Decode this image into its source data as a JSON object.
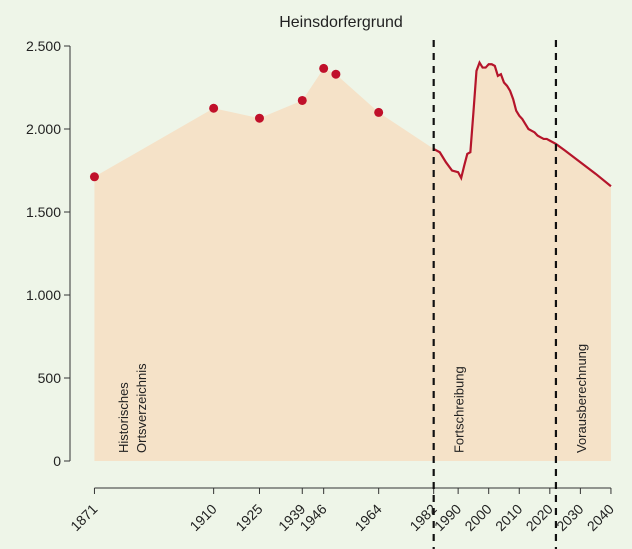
{
  "chart_data": {
    "type": "area",
    "title": "Heinsdorfergrund",
    "points": {
      "color": "#c0102a",
      "x": [
        1871,
        1910,
        1925,
        1939,
        1946,
        1950,
        1964
      ],
      "values": [
        1712,
        2125,
        2065,
        2172,
        2365,
        2330,
        2100
      ]
    },
    "line": {
      "color": "#b5152b",
      "x": [
        1982,
        1984,
        1986,
        1988,
        1990,
        1991,
        1992,
        1993,
        1994,
        1995,
        1996,
        1997,
        1998,
        1999,
        2000,
        2001,
        2002,
        2003,
        2004,
        2005,
        2006,
        2007,
        2008,
        2009,
        2010,
        2011,
        2012,
        2013,
        2014,
        2015,
        2016,
        2017,
        2018,
        2019,
        2020,
        2022,
        2025,
        2030,
        2035,
        2040
      ],
      "values": [
        1880,
        1860,
        1800,
        1750,
        1740,
        1705,
        1780,
        1850,
        1860,
        2100,
        2350,
        2400,
        2370,
        2370,
        2390,
        2390,
        2380,
        2320,
        2330,
        2280,
        2260,
        2230,
        2180,
        2110,
        2080,
        2060,
        2030,
        2000,
        1990,
        1980,
        1960,
        1950,
        1940,
        1940,
        1930,
        1910,
        1870,
        1800,
        1730,
        1655
      ]
    },
    "area_color": "#f5e2c8",
    "vlines": [
      1982,
      2022
    ],
    "annotations": [
      [
        "Historisches",
        "Ortsverzeichnis"
      ],
      [
        "Fortschreibung"
      ],
      [
        "Vorausberechnung"
      ]
    ],
    "xlim": [
      1863,
      2041
    ],
    "xticks": [
      1871,
      1910,
      1925,
      1939,
      1946,
      1964,
      1982,
      1990,
      2000,
      2010,
      2020,
      2030,
      2040
    ],
    "ylim": [
      0,
      2500
    ],
    "yticks": [
      0,
      500,
      {
        "value": 1000,
        "label": "1.000"
      },
      {
        "value": 1500,
        "label": "1.500"
      },
      {
        "value": 2000,
        "label": "2.000"
      },
      {
        "value": 2500,
        "label": "2.500"
      }
    ]
  }
}
